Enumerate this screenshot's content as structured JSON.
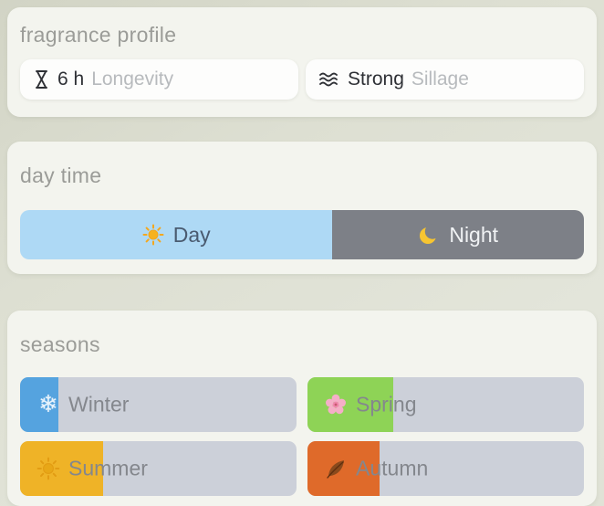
{
  "theme": {
    "card_bg": "#f3f4ee",
    "page_bg": "#dddfd2",
    "track_color": "#ccd0d9",
    "day_color": "#aed9f5",
    "night_color": "#7d8087"
  },
  "fragrance_profile": {
    "title": "fragrance profile",
    "longevity": {
      "value": "6 h",
      "label": "Longevity"
    },
    "sillage": {
      "value": "Strong",
      "label": "Sillage"
    }
  },
  "day_time": {
    "title": "day time",
    "day": {
      "label": "Day",
      "percent": 55.4
    },
    "night": {
      "label": "Night",
      "percent": 44.6
    }
  },
  "seasons": {
    "title": "seasons",
    "items": [
      {
        "name": "Winter",
        "percent": 14,
        "color": "#55a3df",
        "icon": "snowflake-icon"
      },
      {
        "name": "Spring",
        "percent": 31,
        "color": "#8ed356",
        "icon": "blossom-icon"
      },
      {
        "name": "Summer",
        "percent": 30,
        "color": "#efb327",
        "icon": "sun-icon"
      },
      {
        "name": "Autumn",
        "percent": 26,
        "color": "#df6a2a",
        "icon": "autumn-leaf-icon"
      }
    ]
  }
}
